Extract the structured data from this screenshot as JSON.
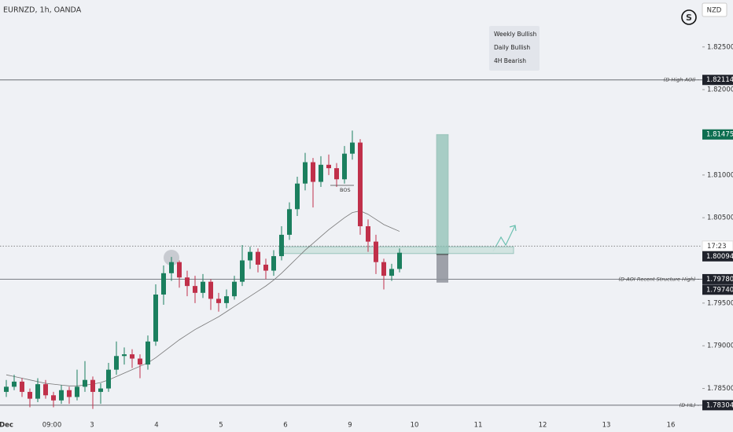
{
  "chart_data": {
    "type": "candlestick",
    "title": "EURNZD, 1h, OANDA",
    "currency": "NZD",
    "up_color": "#1b7f5e",
    "down_color": "#c0304a",
    "ylim": [
      1.7799,
      1.8305
    ],
    "yticks": [
      {
        "value": 1.825,
        "label": "1.82500"
      },
      {
        "value": 1.82,
        "label": "1.82000"
      },
      {
        "value": 1.81,
        "label": "1.81000"
      },
      {
        "value": 1.805,
        "label": "1.80500"
      },
      {
        "value": 1.795,
        "label": "1.79500"
      },
      {
        "value": 1.79,
        "label": "1.79000"
      },
      {
        "value": 1.785,
        "label": "1.78500"
      }
    ],
    "x_labels": [
      "Dec",
      "09:00",
      "3",
      "4",
      "5",
      "6",
      "9",
      "10",
      "11",
      "12",
      "13",
      "16"
    ],
    "candles": [
      [
        1.7846,
        1.786,
        1.784,
        1.7852
      ],
      [
        1.7852,
        1.7866,
        1.7848,
        1.7858
      ],
      [
        1.7858,
        1.7862,
        1.784,
        1.7846
      ],
      [
        1.7846,
        1.785,
        1.7828,
        1.7838
      ],
      [
        1.7838,
        1.7862,
        1.7834,
        1.7855
      ],
      [
        1.7855,
        1.786,
        1.7838,
        1.7842
      ],
      [
        1.7842,
        1.7846,
        1.7828,
        1.7836
      ],
      [
        1.7836,
        1.7854,
        1.7832,
        1.7848
      ],
      [
        1.7848,
        1.7852,
        1.7832,
        1.784
      ],
      [
        1.784,
        1.7872,
        1.7836,
        1.7852
      ],
      [
        1.7852,
        1.7882,
        1.7846,
        1.786
      ],
      [
        1.786,
        1.7864,
        1.7826,
        1.7846
      ],
      [
        1.7846,
        1.7856,
        1.7832,
        1.785
      ],
      [
        1.785,
        1.788,
        1.7846,
        1.7872
      ],
      [
        1.7872,
        1.7905,
        1.7866,
        1.7888
      ],
      [
        1.7888,
        1.7898,
        1.7878,
        1.789
      ],
      [
        1.789,
        1.7896,
        1.7874,
        1.7885
      ],
      [
        1.7885,
        1.789,
        1.7862,
        1.7878
      ],
      [
        1.7878,
        1.7912,
        1.7872,
        1.7905
      ],
      [
        1.7905,
        1.7972,
        1.79,
        1.796
      ],
      [
        1.796,
        1.7994,
        1.7948,
        1.7985
      ],
      [
        1.7985,
        1.8004,
        1.7976,
        1.7998
      ],
      [
        1.7998,
        1.8,
        1.7968,
        1.798
      ],
      [
        1.798,
        1.7988,
        1.7958,
        1.797
      ],
      [
        1.797,
        1.7982,
        1.795,
        1.7962
      ],
      [
        1.7962,
        1.7984,
        1.7956,
        1.7975
      ],
      [
        1.7975,
        1.7978,
        1.7942,
        1.7955
      ],
      [
        1.7955,
        1.7962,
        1.794,
        1.795
      ],
      [
        1.795,
        1.7966,
        1.7944,
        1.7958
      ],
      [
        1.7958,
        1.7982,
        1.7954,
        1.7975
      ],
      [
        1.7975,
        1.8018,
        1.797,
        1.8
      ],
      [
        1.8,
        1.8016,
        1.799,
        1.801
      ],
      [
        1.801,
        1.8014,
        1.7986,
        1.7995
      ],
      [
        1.7995,
        1.8002,
        1.7978,
        1.7988
      ],
      [
        1.7988,
        1.8012,
        1.7982,
        1.8005
      ],
      [
        1.8005,
        1.804,
        1.8,
        1.803
      ],
      [
        1.803,
        1.8068,
        1.8024,
        1.806
      ],
      [
        1.806,
        1.8098,
        1.8052,
        1.809
      ],
      [
        1.809,
        1.8126,
        1.8082,
        1.8115
      ],
      [
        1.8115,
        1.812,
        1.8062,
        1.8092
      ],
      [
        1.8092,
        1.8122,
        1.8086,
        1.8112
      ],
      [
        1.8112,
        1.8124,
        1.81,
        1.8108
      ],
      [
        1.8108,
        1.8114,
        1.8086,
        1.8095
      ],
      [
        1.8095,
        1.8134,
        1.809,
        1.8125
      ],
      [
        1.8125,
        1.8152,
        1.8118,
        1.8138
      ],
      [
        1.8138,
        1.8142,
        1.803,
        1.804
      ],
      [
        1.804,
        1.8048,
        1.801,
        1.8022
      ],
      [
        1.8022,
        1.803,
        1.7984,
        1.7998
      ],
      [
        1.7998,
        1.8002,
        1.7966,
        1.7982
      ],
      [
        1.7982,
        1.7996,
        1.7976,
        1.799
      ],
      [
        1.799,
        1.8014,
        1.7986,
        1.8009
      ]
    ],
    "moving_average": [
      1.7866,
      1.7864,
      1.7862,
      1.786,
      1.7858,
      1.7856,
      1.7855,
      1.7854,
      1.7853,
      1.7853,
      1.7854,
      1.7855,
      1.7857,
      1.786,
      1.7864,
      1.7868,
      1.7872,
      1.7876,
      1.788,
      1.7886,
      1.7893,
      1.79,
      1.7907,
      1.7913,
      1.7919,
      1.7924,
      1.7929,
      1.7934,
      1.794,
      1.7946,
      1.7952,
      1.7958,
      1.7964,
      1.797,
      1.7977,
      1.7985,
      1.7994,
      1.8003,
      1.8012,
      1.802,
      1.8028,
      1.8036,
      1.8043,
      1.805,
      1.8056,
      1.8058,
      1.8054,
      1.8048,
      1.8042,
      1.8038,
      1.8034
    ],
    "levels": [
      {
        "price": 1.82114,
        "label": "(D-High AOI) -"
      },
      {
        "price": {
          "value": 1.7978,
          "label": "1.79780"
        },
        "label": "(D-AOI Recent Structure High) -"
      },
      {
        "price": 1.78304,
        "label": "(D-HL) -"
      }
    ],
    "last_price": 1.80094,
    "countdown": "17:23",
    "position": {
      "target": 1.81475,
      "entry": 1.8007,
      "stop": {
        "value": 1.7974,
        "label": "1.79740"
      }
    },
    "zone": [
      1.8008,
      1.8016
    ],
    "bos_label": "BOS",
    "notes": [
      "Weekly Bullish",
      "Daily Bullish",
      "4H Bearish"
    ]
  }
}
